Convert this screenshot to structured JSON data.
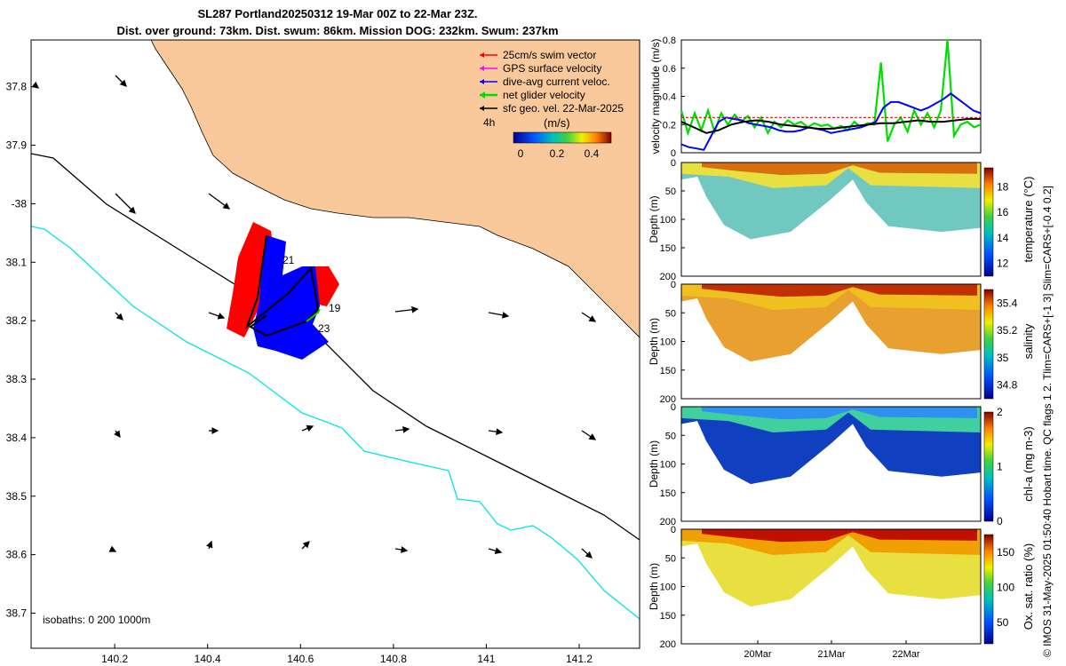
{
  "header": {
    "title_line1": "SL287 Portland20250312 19-Mar 00Z to 22-Mar 23Z.",
    "title_line2": "Dist. over ground: 73km. Dist. swum: 86km. Mission DOG: 232km. Swum: 237km"
  },
  "side_note": "© IMOS 31-May-2025 01:50:40 Hobart time. QC flags 1  2. Tlim=CARS+[-1 3] Slim=CARS+[-0.4 0.2]",
  "colors": {
    "land": "#f9c99b",
    "isobath_200": "#000000",
    "isobath_1000": "#00e5e5",
    "swim": "#ff0000",
    "gps": "#ff00ff",
    "dive_avg": "#0000ff",
    "net": "#00dd00",
    "sfc_geo": "#000000"
  },
  "chart_data": [
    {
      "type": "map",
      "xlim": [
        140.02,
        141.33
      ],
      "ylim": [
        37.72,
        38.76
      ],
      "x_ticks": [
        140.2,
        140.4,
        140.6,
        140.8,
        141,
        141.2
      ],
      "x_tick_labels": [
        "140.2",
        "140.4",
        "140.6",
        "140.8",
        "141",
        "141.2"
      ],
      "y_ticks": [
        37.8,
        37.9,
        38,
        38.1,
        38.2,
        38.3,
        38.4,
        38.5,
        38.6,
        38.7
      ],
      "y_tick_labels": [
        "37.8",
        "37.9",
        "-38",
        "38.1",
        "38.2",
        "38.3",
        "38.4",
        "38.5",
        "38.6",
        "38.7"
      ],
      "legend": [
        {
          "label": "25cm/s swim vector",
          "color": "#ff0000"
        },
        {
          "label": "GPS surface velocity",
          "color": "#ff00ff"
        },
        {
          "label": "dive-avg current veloc.",
          "color": "#0000ff"
        },
        {
          "label": "net glider velocity",
          "color": "#00dd00"
        },
        {
          "label": "sfc geo. vel. 22-Mar-2025",
          "color": "#000000"
        }
      ],
      "legend_note": "4h",
      "colorbar": {
        "label": "(m/s)",
        "ticks": [
          "0",
          "0.2",
          "0.4"
        ]
      },
      "isobaths_label": "isobaths: 0   200  1000m",
      "day_labels": [
        "21",
        "19",
        "23"
      ]
    },
    {
      "type": "line",
      "ylabel": "velocity magnitude (m/s)",
      "ylim": [
        0,
        0.8
      ],
      "y_ticks": [
        "0",
        "0.2",
        "0.4",
        "0.6",
        "0.8"
      ],
      "series": [
        {
          "name": "net glider velocity",
          "color": "#00dd00",
          "values": [
            0.3,
            0.14,
            0.28,
            0.16,
            0.3,
            0.15,
            0.28,
            0.2,
            0.27,
            0.22,
            0.26,
            0.18,
            0.25,
            0.14,
            0.22,
            0.18,
            0.23,
            0.2,
            0.22,
            0.18,
            0.21,
            0.19,
            0.2,
            0.17,
            0.19,
            0.16,
            0.22,
            0.18,
            0.21,
            0.2,
            0.64,
            0.08,
            0.2,
            0.25,
            0.15,
            0.3,
            0.2,
            0.28,
            0.18,
            0.3,
            0.8,
            0.12,
            0.2,
            0.22,
            0.18,
            0.2
          ]
        },
        {
          "name": "dive-avg current",
          "color": "#0000ff",
          "values": [
            0.06,
            0.04,
            0.03,
            0.02,
            0.12,
            0.22,
            0.25,
            0.24,
            0.23,
            0.21,
            0.2,
            0.19,
            0.18,
            0.16,
            0.15,
            0.15,
            0.16,
            0.18,
            0.17,
            0.16,
            0.14,
            0.15,
            0.16,
            0.17,
            0.18,
            0.2,
            0.22,
            0.32,
            0.36,
            0.36,
            0.34,
            0.32,
            0.3,
            0.32,
            0.35,
            0.38,
            0.42,
            0.38,
            0.34,
            0.3,
            0.28
          ]
        },
        {
          "name": "sfc geo. vel.",
          "color": "#000000",
          "values": [
            0.22,
            0.18,
            0.14,
            0.16,
            0.2,
            0.22,
            0.23,
            0.22,
            0.2,
            0.19,
            0.18,
            0.17,
            0.17,
            0.18,
            0.19,
            0.2,
            0.21,
            0.21,
            0.22,
            0.23,
            0.22,
            0.22,
            0.23,
            0.24,
            0.24
          ]
        },
        {
          "name": "swim speed",
          "color": "#ff0000",
          "values": [
            0.25,
            0.25,
            0.25,
            0.25,
            0.25,
            0.25,
            0.25,
            0.25,
            0.25,
            0.25,
            0.25,
            0.25
          ]
        }
      ]
    },
    {
      "type": "heatmap",
      "variable": "temperature (°C)",
      "ylabel": "Depth (m)",
      "ylim": [
        0,
        200
      ],
      "y_ticks": [
        "0",
        "50",
        "100",
        "150",
        "200"
      ],
      "cbar_ticks": [
        "12",
        "14",
        "16",
        "18"
      ],
      "cbar_range": [
        11,
        19.5
      ]
    },
    {
      "type": "heatmap",
      "variable": "salinity",
      "ylabel": "Depth (m)",
      "ylim": [
        0,
        200
      ],
      "y_ticks": [
        "0",
        "50",
        "100",
        "150",
        "200"
      ],
      "cbar_ticks": [
        "34.8",
        "35",
        "35.2",
        "35.4"
      ],
      "cbar_range": [
        34.7,
        35.5
      ]
    },
    {
      "type": "heatmap",
      "variable": "chl-a (mg m-3)",
      "ylabel": "Depth (m)",
      "ylim": [
        0,
        200
      ],
      "y_ticks": [
        "0",
        "50",
        "100",
        "150",
        "200"
      ],
      "cbar_ticks": [
        "0",
        "1",
        "2"
      ],
      "cbar_range": [
        0,
        2
      ]
    },
    {
      "type": "heatmap",
      "variable": "Ox. sat. ratio (%)",
      "ylabel": "Depth (m)",
      "ylim": [
        0,
        200
      ],
      "y_ticks": [
        "0",
        "50",
        "100",
        "150",
        "200"
      ],
      "cbar_ticks": [
        "50",
        "100",
        "150"
      ],
      "cbar_range": [
        20,
        175
      ],
      "x_tick_labels": [
        "20Mar",
        "21Mar",
        "22Mar"
      ]
    }
  ]
}
